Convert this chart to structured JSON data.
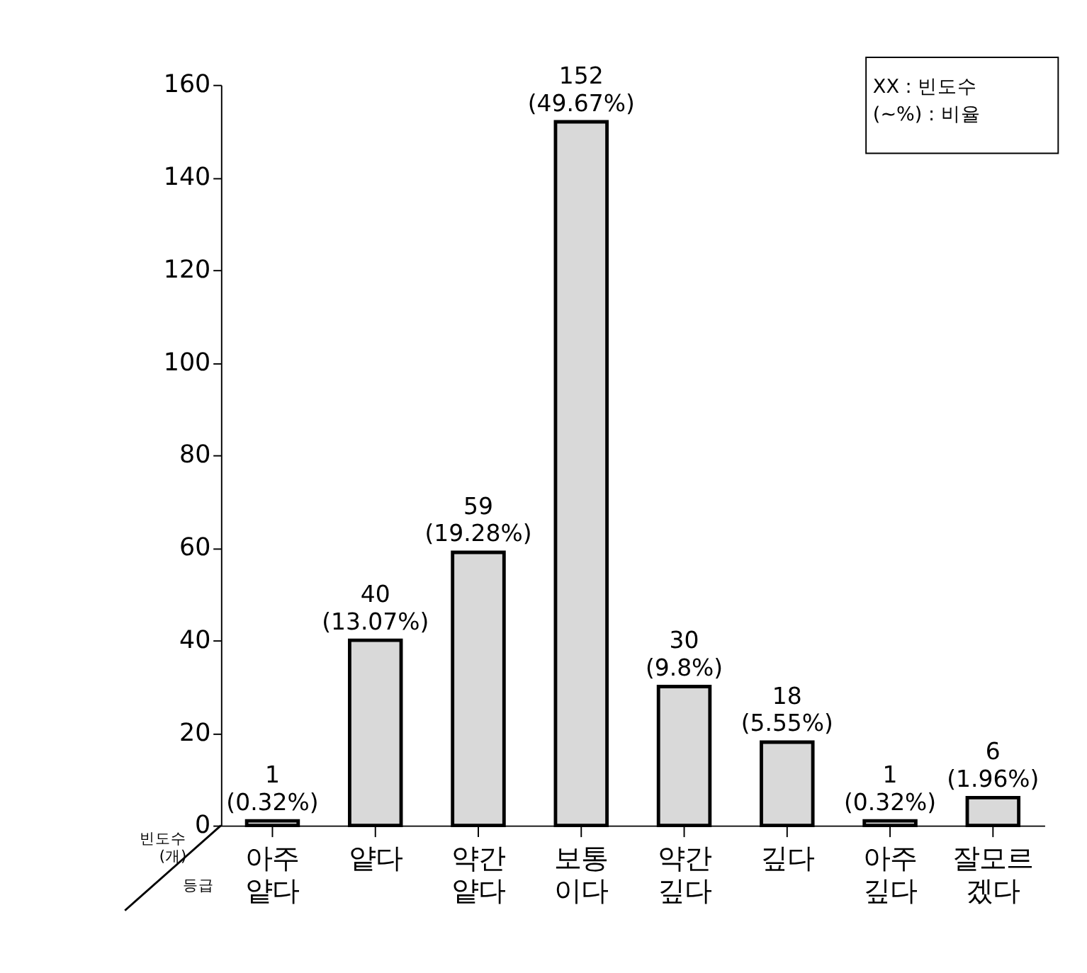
{
  "chart_data": {
    "type": "bar",
    "categories": [
      "아주\n얕다",
      "얕다",
      "약간\n얕다",
      "보통\n이다",
      "약간\n깊다",
      "깊다",
      "아주\n깊다",
      "잘모르\n겠다"
    ],
    "values": [
      1,
      40,
      59,
      152,
      30,
      18,
      1,
      6
    ],
    "value_labels": [
      "1 (0.32%)",
      "40 (13.07%)",
      "59 (19.28%)",
      "152 (49.67%)",
      "30 (9.8%)",
      "18 (5.55%)",
      "1 (0.32%)",
      "6 (1.96%)"
    ],
    "color": "#d9d9d9",
    "ylabel": "빈도수\n(개)",
    "xlabel": "등급",
    "ylim": [
      0,
      160
    ],
    "yticks": [
      0,
      20,
      40,
      60,
      80,
      100,
      120,
      140,
      160
    ],
    "annotations": [
      "XX : 빈도수",
      "(~%) : 비율"
    ],
    "grid": false
  }
}
